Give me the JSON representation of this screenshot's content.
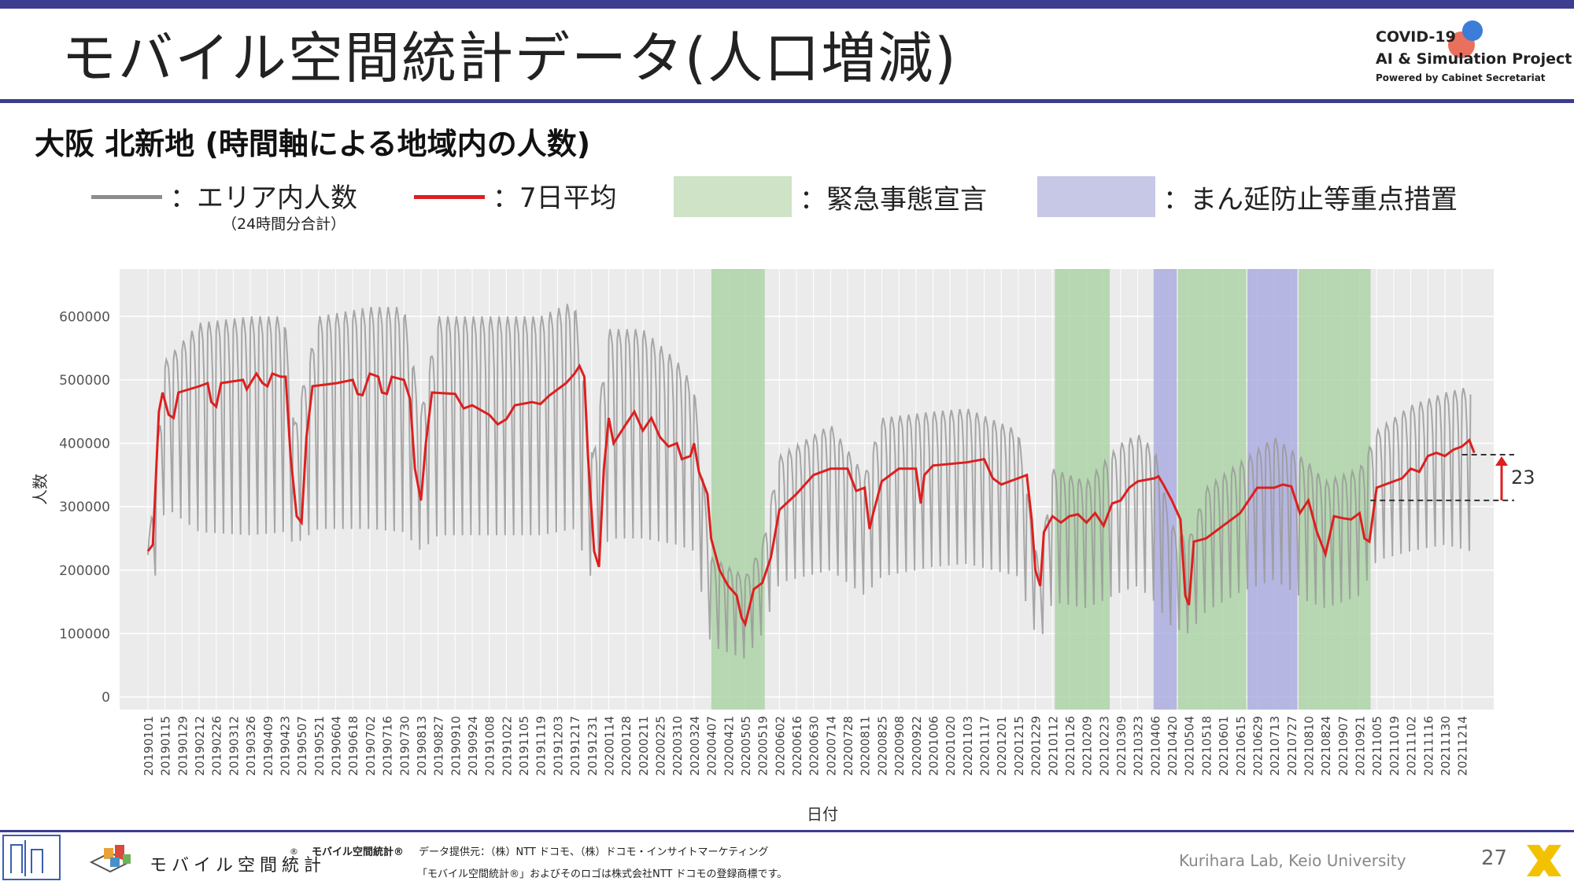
{
  "slide": {
    "title": "モバイル空間統計データ(人口増減)",
    "subtitle": "大阪 北新地 (時間軸による地域内の人数)",
    "page_number": "27",
    "lab": "Kurihara Lab, Keio University"
  },
  "logo": {
    "line1": "COVID-19",
    "line2": "AI & Simulation Project",
    "line3": "Powered by Cabinet Secretariat"
  },
  "legend": {
    "area_count": "：エリア内人数",
    "area_count_note": "（24時間分合計）",
    "avg7": "：7日平均",
    "emergency": "：緊急事態宣言",
    "priority": "：まん延防止等重点措置"
  },
  "colors": {
    "raw": "#9a9a9a",
    "avg": "#dd1f1f",
    "emergency": "#cfe3c7",
    "priority": "#c7c7e6",
    "panel": "#ebebeb",
    "accent": "#3d3d8f"
  },
  "footer": {
    "brand": "モバイル空間統計",
    "brand_mark": "®",
    "src_title": "モバイル空間統計®",
    "src_line1": "データ提供元：（株）NTT ドコモ、（株）ドコモ・インサイトマーケティング",
    "src_line2": "「モバイル空間統計®」およびそのロゴは株式会社NTT ドコモの登録商標です。"
  },
  "chart_data": {
    "type": "line",
    "xlabel": "日付",
    "ylabel": "人数",
    "ylim": [
      0,
      650000
    ],
    "yticks": [
      0,
      100000,
      200000,
      300000,
      400000,
      500000,
      600000
    ],
    "grid": true,
    "x_start": "20190101",
    "x_end": "20211231",
    "xticks": [
      "20190101",
      "20190115",
      "20190129",
      "20190212",
      "20190226",
      "20190312",
      "20190326",
      "20190409",
      "20190423",
      "20190507",
      "20190521",
      "20190604",
      "20190618",
      "20190702",
      "20190716",
      "20190730",
      "20190813",
      "20190827",
      "20190910",
      "20190924",
      "20191008",
      "20191022",
      "20191105",
      "20191119",
      "20191203",
      "20191217",
      "20191231",
      "20200114",
      "20200128",
      "20200211",
      "20200225",
      "20200310",
      "20200324",
      "20200407",
      "20200421",
      "20200505",
      "20200519",
      "20200602",
      "20200616",
      "20200630",
      "20200714",
      "20200728",
      "20200811",
      "20200825",
      "20200908",
      "20200922",
      "20201006",
      "20201020",
      "20201103",
      "20201117",
      "20201201",
      "20201215",
      "20201229",
      "20210112",
      "20210126",
      "20210209",
      "20210223",
      "20210309",
      "20210323",
      "20210406",
      "20210420",
      "20210504",
      "20210518",
      "20210601",
      "20210615",
      "20210629",
      "20210713",
      "20210727",
      "20210810",
      "20210824",
      "20210907",
      "20210921",
      "20211005",
      "20211019",
      "20211102",
      "20211116",
      "20211130",
      "20211214"
    ],
    "shaded_periods": [
      {
        "type": "emergency",
        "start": "20200407",
        "end": "20200521"
      },
      {
        "type": "emergency",
        "start": "20210114",
        "end": "20210228"
      },
      {
        "type": "priority",
        "start": "20210405",
        "end": "20210424"
      },
      {
        "type": "emergency",
        "start": "20210425",
        "end": "20210620"
      },
      {
        "type": "priority",
        "start": "20210621",
        "end": "20210801"
      },
      {
        "type": "emergency",
        "start": "20210802",
        "end": "20210930"
      }
    ],
    "series": [
      {
        "name": "エリア内人数",
        "style": "weekly-oscillation",
        "points": [
          [
            "20190101",
            110000,
            230000
          ],
          [
            "20190115",
            300000,
            530000
          ],
          [
            "20190212",
            260000,
            590000
          ],
          [
            "20190326",
            255000,
            600000
          ],
          [
            "20190423",
            260000,
            600000
          ],
          [
            "20190501",
            240000,
            430000
          ],
          [
            "20190521",
            265000,
            600000
          ],
          [
            "20190702",
            265000,
            615000
          ],
          [
            "20190730",
            260000,
            615000
          ],
          [
            "20190813",
            230000,
            450000
          ],
          [
            "20190827",
            255000,
            600000
          ],
          [
            "20191008",
            255000,
            600000
          ],
          [
            "20191119",
            255000,
            600000
          ],
          [
            "20191217",
            265000,
            625000
          ],
          [
            "20200101",
            180000,
            380000
          ],
          [
            "20200114",
            250000,
            580000
          ],
          [
            "20200211",
            250000,
            580000
          ],
          [
            "20200310",
            240000,
            530000
          ],
          [
            "20200324",
            230000,
            490000
          ],
          [
            "20200407",
            80000,
            220000
          ],
          [
            "20200505",
            60000,
            190000
          ],
          [
            "20200519",
            100000,
            240000
          ],
          [
            "20200602",
            180000,
            380000
          ],
          [
            "20200714",
            200000,
            430000
          ],
          [
            "20200811",
            160000,
            350000
          ],
          [
            "20200825",
            190000,
            440000
          ],
          [
            "20201006",
            205000,
            450000
          ],
          [
            "20201103",
            210000,
            455000
          ],
          [
            "20201215",
            190000,
            420000
          ],
          [
            "20210101",
            80000,
            200000
          ],
          [
            "20210112",
            150000,
            360000
          ],
          [
            "20210209",
            140000,
            340000
          ],
          [
            "20210309",
            165000,
            400000
          ],
          [
            "20210323",
            175000,
            415000
          ],
          [
            "20210406",
            150000,
            390000
          ],
          [
            "20210420",
            110000,
            270000
          ],
          [
            "20210504",
            100000,
            250000
          ],
          [
            "20210518",
            135000,
            330000
          ],
          [
            "20210615",
            165000,
            370000
          ],
          [
            "20210713",
            185000,
            410000
          ],
          [
            "20210810",
            150000,
            370000
          ],
          [
            "20210824",
            140000,
            340000
          ],
          [
            "20210921",
            160000,
            360000
          ],
          [
            "20211005",
            215000,
            420000
          ],
          [
            "20211102",
            230000,
            460000
          ],
          [
            "20211130",
            240000,
            480000
          ],
          [
            "20211221",
            230000,
            490000
          ]
        ]
      },
      {
        "name": "7日平均",
        "points": [
          [
            "20190101",
            230000
          ],
          [
            "20190105",
            240000
          ],
          [
            "20190110",
            450000
          ],
          [
            "20190113",
            480000
          ],
          [
            "20190118",
            445000
          ],
          [
            "20190122",
            440000
          ],
          [
            "20190126",
            480000
          ],
          [
            "20190212",
            490000
          ],
          [
            "20190219",
            495000
          ],
          [
            "20190222",
            465000
          ],
          [
            "20190226",
            458000
          ],
          [
            "20190302",
            495000
          ],
          [
            "20190320",
            500000
          ],
          [
            "20190323",
            485000
          ],
          [
            "20190331",
            510000
          ],
          [
            "20190405",
            495000
          ],
          [
            "20190409",
            490000
          ],
          [
            "20190413",
            510000
          ],
          [
            "20190420",
            505000
          ],
          [
            "20190424",
            505000
          ],
          [
            "20190428",
            380000
          ],
          [
            "20190503",
            285000
          ],
          [
            "20190507",
            275000
          ],
          [
            "20190511",
            410000
          ],
          [
            "20190516",
            490000
          ],
          [
            "20190605",
            495000
          ],
          [
            "20190618",
            500000
          ],
          [
            "20190622",
            478000
          ],
          [
            "20190626",
            476000
          ],
          [
            "20190702",
            510000
          ],
          [
            "20190709",
            505000
          ],
          [
            "20190712",
            480000
          ],
          [
            "20190716",
            478000
          ],
          [
            "20190720",
            505000
          ],
          [
            "20190730",
            500000
          ],
          [
            "20190804",
            470000
          ],
          [
            "20190808",
            360000
          ],
          [
            "20190813",
            310000
          ],
          [
            "20190817",
            400000
          ],
          [
            "20190822",
            480000
          ],
          [
            "20190910",
            478000
          ],
          [
            "20190917",
            455000
          ],
          [
            "20190924",
            460000
          ],
          [
            "20191008",
            445000
          ],
          [
            "20191015",
            430000
          ],
          [
            "20191022",
            438000
          ],
          [
            "20191029",
            460000
          ],
          [
            "20191112",
            465000
          ],
          [
            "20191119",
            462000
          ],
          [
            "20191126",
            475000
          ],
          [
            "20191210",
            495000
          ],
          [
            "20191217",
            510000
          ],
          [
            "20191221",
            522000
          ],
          [
            "20191225",
            505000
          ],
          [
            "20191228",
            380000
          ],
          [
            "20200102",
            230000
          ],
          [
            "20200106",
            205000
          ],
          [
            "20200110",
            360000
          ],
          [
            "20200114",
            440000
          ],
          [
            "20200118",
            400000
          ],
          [
            "20200128",
            430000
          ],
          [
            "20200204",
            450000
          ],
          [
            "20200211",
            420000
          ],
          [
            "20200218",
            440000
          ],
          [
            "20200225",
            410000
          ],
          [
            "20200303",
            395000
          ],
          [
            "20200310",
            400000
          ],
          [
            "20200314",
            375000
          ],
          [
            "20200321",
            380000
          ],
          [
            "20200324",
            400000
          ],
          [
            "20200328",
            355000
          ],
          [
            "20200404",
            320000
          ],
          [
            "20200407",
            250000
          ],
          [
            "20200414",
            200000
          ],
          [
            "20200421",
            175000
          ],
          [
            "20200428",
            160000
          ],
          [
            "20200502",
            125000
          ],
          [
            "20200505",
            115000
          ],
          [
            "20200512",
            170000
          ],
          [
            "20200519",
            180000
          ],
          [
            "20200526",
            220000
          ],
          [
            "20200602",
            295000
          ],
          [
            "20200616",
            320000
          ],
          [
            "20200630",
            350000
          ],
          [
            "20200714",
            360000
          ],
          [
            "20200728",
            360000
          ],
          [
            "20200801",
            340000
          ],
          [
            "20200804",
            325000
          ],
          [
            "20200811",
            330000
          ],
          [
            "20200815",
            265000
          ],
          [
            "20200818",
            290000
          ],
          [
            "20200825",
            340000
          ],
          [
            "20200908",
            360000
          ],
          [
            "20200922",
            360000
          ],
          [
            "20200926",
            305000
          ],
          [
            "20200929",
            350000
          ],
          [
            "20201006",
            365000
          ],
          [
            "20201103",
            370000
          ],
          [
            "20201117",
            375000
          ],
          [
            "20201124",
            345000
          ],
          [
            "20201201",
            335000
          ],
          [
            "20201215",
            345000
          ],
          [
            "20201222",
            350000
          ],
          [
            "20201226",
            280000
          ],
          [
            "20201229",
            200000
          ],
          [
            "20210102",
            175000
          ],
          [
            "20210105",
            260000
          ],
          [
            "20210112",
            285000
          ],
          [
            "20210119",
            275000
          ],
          [
            "20210126",
            285000
          ],
          [
            "20210202",
            288000
          ],
          [
            "20210209",
            275000
          ],
          [
            "20210216",
            290000
          ],
          [
            "20210223",
            270000
          ],
          [
            "20210302",
            305000
          ],
          [
            "20210309",
            310000
          ],
          [
            "20210316",
            330000
          ],
          [
            "20210323",
            340000
          ],
          [
            "20210406",
            345000
          ],
          [
            "20210409",
            348000
          ],
          [
            "20210413",
            335000
          ],
          [
            "20210420",
            310000
          ],
          [
            "20210427",
            280000
          ],
          [
            "20210501",
            160000
          ],
          [
            "20210504",
            145000
          ],
          [
            "20210508",
            245000
          ],
          [
            "20210518",
            250000
          ],
          [
            "20210601",
            270000
          ],
          [
            "20210615",
            290000
          ],
          [
            "20210629",
            330000
          ],
          [
            "20210713",
            330000
          ],
          [
            "20210720",
            335000
          ],
          [
            "20210727",
            332000
          ],
          [
            "20210803",
            290000
          ],
          [
            "20210810",
            310000
          ],
          [
            "20210817",
            260000
          ],
          [
            "20210824",
            225000
          ],
          [
            "20210831",
            285000
          ],
          [
            "20210907",
            282000
          ],
          [
            "20210914",
            280000
          ],
          [
            "20210921",
            290000
          ],
          [
            "20210925",
            250000
          ],
          [
            "20210929",
            245000
          ],
          [
            "20211005",
            330000
          ],
          [
            "20211012",
            335000
          ],
          [
            "20211019",
            340000
          ],
          [
            "20211026",
            345000
          ],
          [
            "20211102",
            360000
          ],
          [
            "20211109",
            355000
          ],
          [
            "20211116",
            380000
          ],
          [
            "20211123",
            385000
          ],
          [
            "20211130",
            380000
          ],
          [
            "20211207",
            390000
          ],
          [
            "20211214",
            395000
          ],
          [
            "20211220",
            405000
          ],
          [
            "20211224",
            385000
          ]
        ]
      }
    ],
    "annotation": {
      "label": "23.2%",
      "from": 310000,
      "to": 382000
    }
  }
}
